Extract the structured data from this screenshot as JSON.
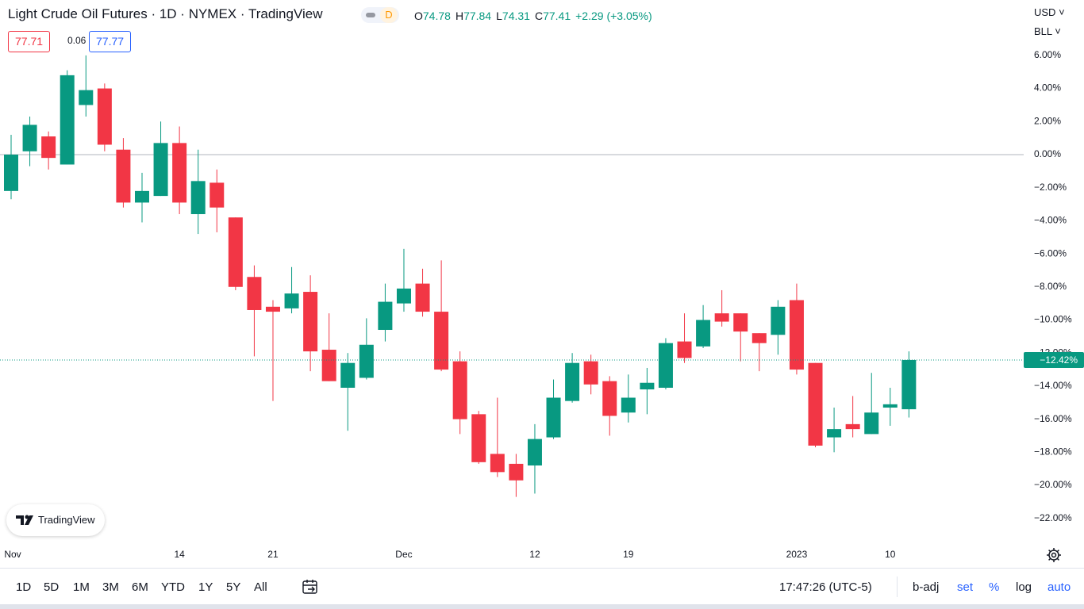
{
  "header": {
    "title": "Light Crude Oil Futures · 1D · NYMEX · TradingView",
    "badge": "D",
    "ohlc": [
      {
        "key": "O",
        "value": 74.78
      },
      {
        "key": "H",
        "value": 77.84
      },
      {
        "key": "L",
        "value": 74.31
      },
      {
        "key": "C",
        "value": 77.41
      }
    ],
    "change": "+2.29 (+3.05%)",
    "bid": 77.71,
    "spread": 0.06,
    "ask": 77.77,
    "currency": "USD",
    "unit": "BLL"
  },
  "logo": "TradingView",
  "toolbar": {
    "ranges": [
      "1D",
      "5D",
      "1M",
      "3M",
      "6M",
      "YTD",
      "1Y",
      "5Y",
      "All"
    ],
    "time": "17:47:26 (UTC-5)",
    "options": [
      "b-adj",
      "set",
      "%",
      "log",
      "auto"
    ]
  },
  "chart_data": {
    "type": "candlestick",
    "categories": [
      "Nov",
      null,
      null,
      null,
      null,
      null,
      null,
      null,
      null,
      "14",
      null,
      null,
      null,
      null,
      "21",
      null,
      null,
      null,
      null,
      null,
      null,
      "Dec",
      null,
      null,
      null,
      null,
      null,
      null,
      "12",
      null,
      null,
      null,
      null,
      "19",
      null,
      null,
      null,
      null,
      null,
      null,
      null,
      null,
      "2023",
      null,
      null,
      null,
      null,
      "10",
      null
    ],
    "open": [
      -2.2,
      0.2,
      1.1,
      -0.6,
      3.0,
      4.0,
      0.3,
      -2.9,
      -2.5,
      0.7,
      -3.6,
      -1.7,
      -3.8,
      -7.4,
      -9.2,
      -9.3,
      -8.3,
      -11.8,
      -14.1,
      -13.5,
      -10.6,
      -9.0,
      -7.8,
      -9.5,
      -12.5,
      -15.7,
      -18.1,
      -18.7,
      -18.8,
      -17.1,
      -14.9,
      -12.5,
      -13.7,
      -15.6,
      -14.2,
      -14.1,
      -11.3,
      -11.6,
      -9.6,
      -9.6,
      -10.8,
      -10.9,
      -8.8,
      -12.6,
      -17.1,
      -16.3,
      -16.9,
      -15.3,
      -15.4
    ],
    "high": [
      1.2,
      2.3,
      1.4,
      5.1,
      6.0,
      4.3,
      1.0,
      -1.1,
      2.0,
      1.7,
      0.3,
      -0.9,
      -3.8,
      -6.7,
      -8.8,
      -6.8,
      -7.3,
      -9.6,
      -12.0,
      -9.9,
      -7.8,
      -5.7,
      -6.9,
      -6.4,
      -11.9,
      -15.5,
      -14.7,
      -18.1,
      -16.3,
      -13.6,
      -12.0,
      -12.1,
      -13.4,
      -13.3,
      -12.9,
      -11.1,
      -9.6,
      -9.1,
      -8.2,
      -9.6,
      -10.8,
      -8.8,
      -7.8,
      -12.6,
      -15.3,
      -14.6,
      -13.2,
      -14.1,
      -11.9
    ],
    "low": [
      -2.7,
      -0.7,
      -0.9,
      -0.6,
      2.3,
      0.2,
      -3.2,
      -4.1,
      -2.5,
      -3.6,
      -4.8,
      -4.7,
      -8.2,
      -12.2,
      -14.9,
      -9.6,
      -13.1,
      -13.7,
      -16.7,
      -13.6,
      -11.3,
      -9.5,
      -9.8,
      -13.1,
      -16.9,
      -18.7,
      -19.5,
      -20.7,
      -20.5,
      -17.2,
      -15.0,
      -14.5,
      -17.0,
      -16.2,
      -15.7,
      -14.2,
      -12.6,
      -11.7,
      -10.4,
      -12.5,
      -13.1,
      -12.1,
      -13.3,
      -17.7,
      -18.0,
      -17.1,
      -16.9,
      -16.4,
      -15.9
    ],
    "close": [
      0.0,
      1.8,
      -0.2,
      4.8,
      3.9,
      0.6,
      -2.9,
      -2.2,
      0.7,
      -2.9,
      -1.6,
      -3.2,
      -8.0,
      -9.4,
      -9.5,
      -8.4,
      -11.9,
      -13.7,
      -12.6,
      -11.5,
      -8.9,
      -8.1,
      -9.5,
      -13.0,
      -16.0,
      -18.6,
      -19.2,
      -19.7,
      -17.2,
      -14.7,
      -12.6,
      -13.9,
      -15.8,
      -14.7,
      -13.8,
      -11.4,
      -12.3,
      -10.0,
      -10.1,
      -10.7,
      -11.4,
      -9.2,
      -13.0,
      -17.6,
      -16.6,
      -16.6,
      -15.6,
      -15.1,
      -12.42
    ],
    "up_color": "#089981",
    "down_color": "#f23645",
    "ylim": [
      -23.26,
      9.35
    ],
    "yticks": [
      {
        "value": 6,
        "label": "6.00%"
      },
      {
        "value": 4,
        "label": "4.00%"
      },
      {
        "value": 2,
        "label": "2.00%"
      },
      {
        "value": 0,
        "label": "0.00%"
      },
      {
        "value": -2,
        "label": "−2.00%"
      },
      {
        "value": -4,
        "label": "−4.00%"
      },
      {
        "value": -6,
        "label": "−6.00%"
      },
      {
        "value": -8,
        "label": "−8.00%"
      },
      {
        "value": -10,
        "label": "−10.00%"
      },
      {
        "value": -12,
        "label": "−12.00%"
      },
      {
        "value": -14,
        "label": "−14.00%"
      },
      {
        "value": -16,
        "label": "−16.00%"
      },
      {
        "value": -18,
        "label": "−18.00%"
      },
      {
        "value": -20,
        "label": "−20.00%"
      },
      {
        "value": -22,
        "label": "−22.00%"
      }
    ],
    "baseline": 0,
    "last_price": {
      "value": -12.42,
      "label": "−12.42%"
    },
    "grid": false
  }
}
